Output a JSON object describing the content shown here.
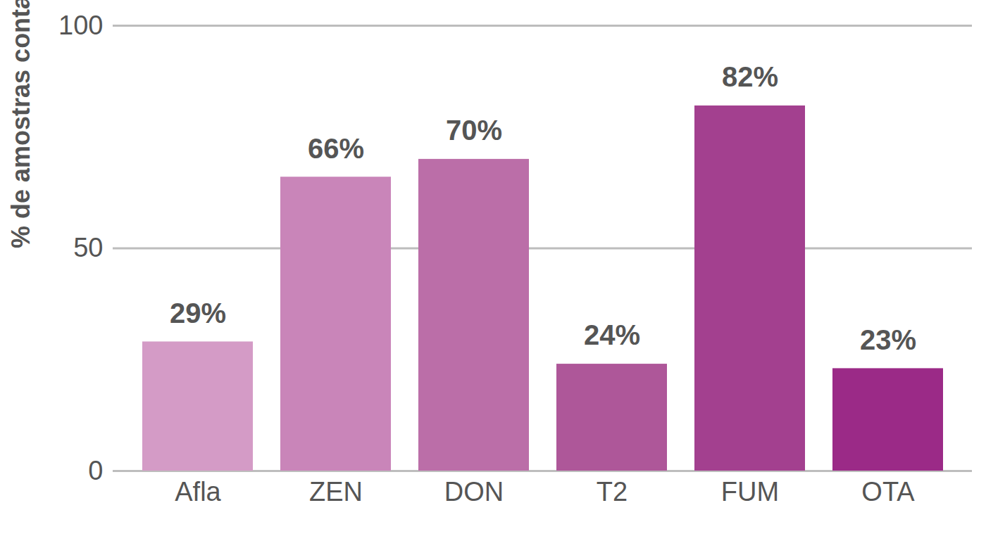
{
  "chart_data": {
    "type": "bar",
    "y_label": "% de amostras contaminadas",
    "categories": [
      "Afla",
      "ZEN",
      "DON",
      "T2",
      "FUM",
      "OTA"
    ],
    "values": [
      29,
      66,
      70,
      24,
      82,
      23
    ],
    "value_labels": [
      "29%",
      "66%",
      "70%",
      "24%",
      "82%",
      "23%"
    ],
    "colors": [
      "#d49bc6",
      "#c985b9",
      "#bb6ea8",
      "#ae5799",
      "#a3408f",
      "#9b2a87"
    ],
    "ylim": [
      0,
      100
    ],
    "yticks": [
      0,
      50,
      100
    ],
    "grid": true,
    "data_labels": true
  }
}
